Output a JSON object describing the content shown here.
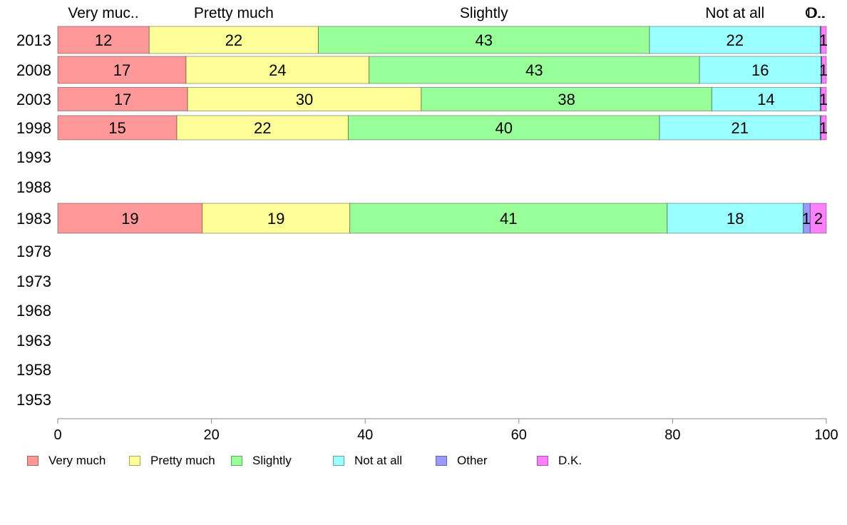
{
  "chart_data": {
    "type": "bar",
    "orientation": "horizontal",
    "stacked": true,
    "categories": [
      "2013",
      "2008",
      "2003",
      "1998",
      "1993",
      "1988",
      "1983",
      "1978",
      "1973",
      "1968",
      "1963",
      "1958",
      "1953"
    ],
    "top_labels": [
      "Very muc..",
      "Pretty much",
      "Slightly",
      "Not at all",
      "O..",
      "D.."
    ],
    "series": [
      {
        "name": "Very much",
        "color": "#ff9999",
        "values": [
          11.9,
          16.7,
          16.9,
          15.5,
          null,
          null,
          18.8,
          null,
          null,
          null,
          null,
          null,
          null
        ],
        "labels": [
          "12",
          "17",
          "17",
          "15",
          "",
          "",
          "19",
          "",
          "",
          "",
          "",
          "",
          ""
        ]
      },
      {
        "name": "Pretty much",
        "color": "#ffff99",
        "values": [
          22.0,
          23.8,
          30.4,
          22.3,
          null,
          null,
          19.2,
          null,
          null,
          null,
          null,
          null,
          null
        ],
        "labels": [
          "22",
          "24",
          "30",
          "22",
          "",
          "",
          "19",
          "",
          "",
          "",
          "",
          "",
          ""
        ]
      },
      {
        "name": "Slightly",
        "color": "#99ff99",
        "values": [
          43.1,
          43.0,
          37.8,
          40.5,
          null,
          null,
          41.3,
          null,
          null,
          null,
          null,
          null,
          null
        ],
        "labels": [
          "43",
          "43",
          "38",
          "40",
          "",
          "",
          "41",
          "",
          "",
          "",
          "",
          "",
          ""
        ]
      },
      {
        "name": "Not at all",
        "color": "#99ffff",
        "values": [
          22.2,
          15.8,
          14.1,
          20.9,
          null,
          null,
          17.7,
          null,
          null,
          null,
          null,
          null,
          null
        ],
        "labels": [
          "22",
          "16",
          "14",
          "21",
          "",
          "",
          "18",
          "",
          "",
          "",
          "",
          "",
          ""
        ]
      },
      {
        "name": "Other",
        "color": "#9999ff",
        "values": [
          0.1,
          0.1,
          0.1,
          0.1,
          null,
          null,
          0.9,
          null,
          null,
          null,
          null,
          null,
          null
        ],
        "labels": [
          "",
          "",
          "",
          "",
          "",
          "",
          "1",
          "",
          "",
          "",
          "",
          "",
          ""
        ]
      },
      {
        "name": "D.K.",
        "color": "#ff80ff",
        "values": [
          0.7,
          0.6,
          0.7,
          0.7,
          null,
          null,
          2.1,
          null,
          null,
          null,
          null,
          null,
          null
        ],
        "labels": [
          "1",
          "1",
          "1",
          "1",
          "",
          "",
          "2",
          "",
          "",
          "",
          "",
          "",
          ""
        ]
      }
    ],
    "xlim": [
      0,
      100
    ],
    "xticks": [
      "0",
      "20",
      "40",
      "60",
      "80",
      "100"
    ],
    "grid": false,
    "legend_position": "bottom"
  }
}
